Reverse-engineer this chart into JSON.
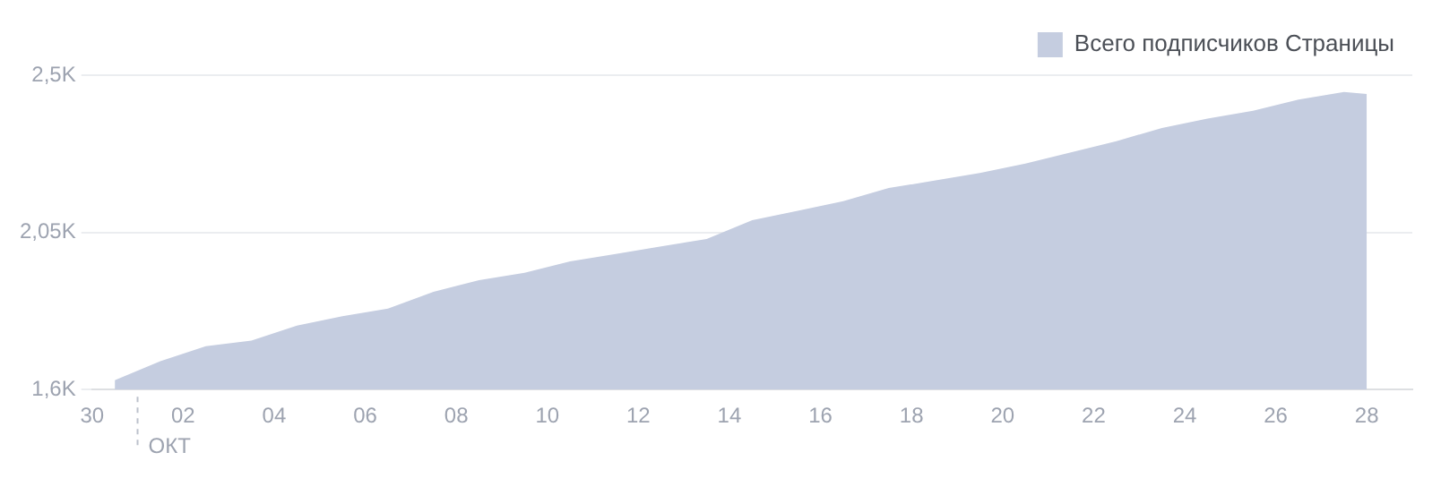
{
  "chart_data": {
    "type": "area",
    "x": [
      "--09-30T12:00",
      "--10-01T12:00",
      "--10-02T12:00",
      "--10-03T12:00",
      "--10-04T12:00",
      "--10-05T12:00",
      "--10-06T12:00",
      "--10-07T12:00",
      "--10-08T12:00",
      "--10-09T12:00",
      "--10-10T12:00",
      "--10-11T12:00",
      "--10-12T12:00",
      "--10-13T12:00",
      "--10-14T12:00",
      "--10-15T12:00",
      "--10-16T12:00",
      "--10-17T12:00",
      "--10-18T12:00",
      "--10-19T12:00",
      "--10-20T12:00",
      "--10-21T12:00",
      "--10-22T12:00",
      "--10-23T12:00",
      "--10-24T12:00",
      "--10-25T12:00",
      "--10-26T12:00",
      "--10-27T12:00",
      "--10-28"
    ],
    "series": [
      {
        "name": "Всего подписчиков Страницы",
        "color": "#c5cde0",
        "values": [
          1627,
          1681,
          1724,
          1740,
          1783,
          1810,
          1832,
          1880,
          1913,
          1934,
          1967,
          1988,
          2010,
          2031,
          2085,
          2112,
          2139,
          2177,
          2198,
          2220,
          2247,
          2279,
          2311,
          2349,
          2376,
          2398,
          2430,
          2452,
          2446
        ]
      }
    ],
    "xlim": [
      "--09-30",
      "--10-29"
    ],
    "xticks": [
      {
        "value": "--09-30",
        "label": "30"
      },
      {
        "value": "--10-02",
        "label": "02"
      },
      {
        "value": "--10-04",
        "label": "04"
      },
      {
        "value": "--10-06",
        "label": "06"
      },
      {
        "value": "--10-08",
        "label": "08"
      },
      {
        "value": "--10-10",
        "label": "10"
      },
      {
        "value": "--10-12",
        "label": "12"
      },
      {
        "value": "--10-14",
        "label": "14"
      },
      {
        "value": "--10-16",
        "label": "16"
      },
      {
        "value": "--10-18",
        "label": "18"
      },
      {
        "value": "--10-20",
        "label": "20"
      },
      {
        "value": "--10-22",
        "label": "22"
      },
      {
        "value": "--10-24",
        "label": "24"
      },
      {
        "value": "--10-26",
        "label": "26"
      },
      {
        "value": "--10-28",
        "label": "28"
      }
    ],
    "ylim": [
      1600,
      2500
    ],
    "yticks": [
      {
        "value": 1600,
        "label": "1,6K"
      },
      {
        "value": 2050,
        "label": "2,05K"
      },
      {
        "value": 2500,
        "label": "2,5K"
      }
    ],
    "annotations": [
      "ОКТ"
    ],
    "grid": "y",
    "legend": "top right",
    "marker": "none"
  }
}
